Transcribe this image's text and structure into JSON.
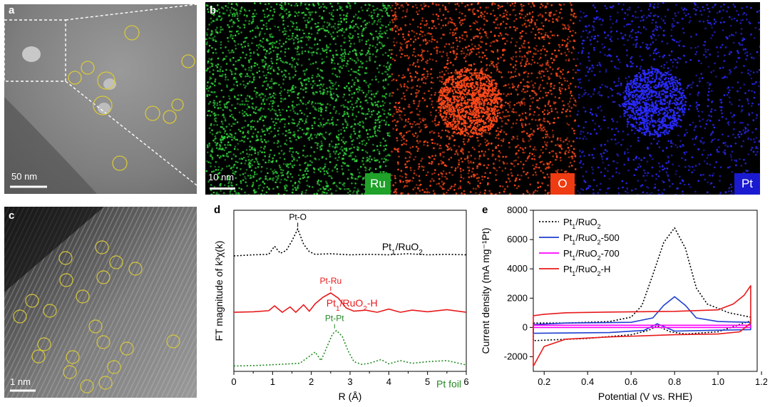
{
  "panels": {
    "a": {
      "label": "a",
      "scalebar": "50 nm"
    },
    "b": {
      "label": "b",
      "scalebar": "10 nm",
      "maps": [
        {
          "element": "Ru",
          "color": "#1fa12a",
          "dot": "#2fd13a"
        },
        {
          "element": "O",
          "color": "#ee3b12",
          "dot": "#ff4a1a"
        },
        {
          "element": "Pt",
          "color": "#1a1ad0",
          "dot": "#2a2aff"
        }
      ]
    },
    "c": {
      "label": "c",
      "scalebar": "1 nm"
    },
    "d": {
      "label": "d"
    },
    "e": {
      "label": "e"
    }
  },
  "chart_data": [
    {
      "panel": "d",
      "type": "line",
      "xlabel": "R (Å)",
      "ylabel": "FT magnitude of k³χ(k)",
      "xlim": [
        0,
        6
      ],
      "xticks": [
        0,
        1,
        2,
        3,
        4,
        5,
        6
      ],
      "series": [
        {
          "name": "Pt1/RuO2",
          "color": "#000000",
          "dash": "dotted",
          "offset": 2.05,
          "peak_label": "Pt-O",
          "peak_x": 1.65,
          "x": [
            0,
            0.5,
            0.9,
            1.05,
            1.2,
            1.35,
            1.5,
            1.65,
            1.8,
            1.95,
            2.1,
            2.5,
            3,
            3.5,
            4,
            4.5,
            5,
            5.5,
            6
          ],
          "y": [
            0.0,
            0.02,
            0.03,
            0.18,
            0.05,
            0.1,
            0.28,
            0.5,
            0.22,
            0.08,
            0.03,
            0.04,
            0.02,
            0.03,
            0.02,
            0.04,
            0.02,
            0.03,
            0.02
          ]
        },
        {
          "name": "Pt1/RuO2-H",
          "color": "#e8191b",
          "dash": "solid",
          "offset": 1.0,
          "peak_label": "Pt-Ru",
          "peak_x": 2.5,
          "x": [
            0,
            0.5,
            0.9,
            1.05,
            1.25,
            1.45,
            1.6,
            1.8,
            1.95,
            2.1,
            2.3,
            2.5,
            2.7,
            2.9,
            3.1,
            3.4,
            3.7,
            4,
            4.3,
            4.6,
            5,
            5.5,
            6
          ],
          "y": [
            0.0,
            0.01,
            0.03,
            0.12,
            0.0,
            0.1,
            0.0,
            0.14,
            0.02,
            0.16,
            0.28,
            0.36,
            0.26,
            0.08,
            0.02,
            0.04,
            0.0,
            0.06,
            0.0,
            0.04,
            0.01,
            0.05,
            0.0
          ]
        },
        {
          "name": "Pt foil",
          "color": "#228b22",
          "dash": "dotted",
          "offset": 0.0,
          "peak_label": "Pt-Pt",
          "peak_x": 2.6,
          "x": [
            0,
            0.6,
            1.2,
            1.7,
            1.95,
            2.1,
            2.25,
            2.4,
            2.55,
            2.65,
            2.8,
            2.95,
            3.1,
            3.3,
            3.5,
            3.8,
            4.0,
            4.3,
            4.6,
            5.0,
            5.5,
            6
          ],
          "y": [
            0.0,
            0.01,
            0.03,
            0.05,
            0.18,
            0.26,
            0.1,
            0.35,
            0.6,
            0.66,
            0.55,
            0.28,
            0.08,
            0.03,
            0.05,
            0.12,
            0.04,
            0.1,
            0.05,
            0.08,
            0.1,
            0.02
          ]
        }
      ]
    },
    {
      "panel": "e",
      "type": "line",
      "xlabel": "Potential (V vs. RHE)",
      "ylabel": "Current density (mA mg⁻¹Pt)",
      "xlim": [
        0.15,
        1.18
      ],
      "ylim": [
        -3000,
        8000
      ],
      "xticks": [
        0.2,
        0.4,
        0.6,
        0.8,
        1.0,
        1.2
      ],
      "xtick_labels": [
        "0.2",
        "0.4",
        "0.6",
        "0.8",
        "1.0",
        "1.2"
      ],
      "yticks": [
        -2000,
        0,
        2000,
        4000,
        6000,
        8000
      ],
      "legend_position": "top-left",
      "series": [
        {
          "name": "Pt1/RuO2",
          "color": "#000000",
          "dash": "dotted",
          "x": [
            0.15,
            0.3,
            0.5,
            0.6,
            0.65,
            0.7,
            0.75,
            0.8,
            0.85,
            0.9,
            0.95,
            1.05,
            1.15,
            1.15,
            1.0,
            0.85,
            0.78,
            0.72,
            0.68,
            0.6,
            0.4,
            0.15
          ],
          "y": [
            300,
            300,
            400,
            700,
            1500,
            3600,
            5800,
            6800,
            5400,
            2700,
            1600,
            1000,
            700,
            450,
            -300,
            -450,
            -300,
            100,
            -200,
            -500,
            -750,
            -900
          ]
        },
        {
          "name": "Pt1/RuO2-500",
          "color": "#1f3fd0",
          "dash": "solid",
          "x": [
            0.15,
            0.3,
            0.6,
            0.7,
            0.75,
            0.8,
            0.85,
            0.9,
            1.0,
            1.15,
            1.15,
            0.8,
            0.72,
            0.66,
            0.5,
            0.15
          ],
          "y": [
            200,
            300,
            350,
            650,
            1500,
            2100,
            1500,
            650,
            400,
            350,
            -150,
            -250,
            250,
            -200,
            -350,
            -400
          ]
        },
        {
          "name": "Pt1/RuO2-700",
          "color": "#ff00ff",
          "dash": "solid",
          "x": [
            0.15,
            0.6,
            1.15,
            1.15,
            0.6,
            0.15
          ],
          "y": [
            150,
            150,
            150,
            0,
            0,
            0
          ]
        },
        {
          "name": "Pt1/RuO2-H",
          "color": "#e8191b",
          "dash": "solid",
          "x": [
            0.15,
            0.2,
            0.3,
            0.5,
            0.8,
            1.0,
            1.07,
            1.12,
            1.15,
            1.15,
            1.1,
            1.0,
            0.8,
            0.5,
            0.3,
            0.2,
            0.15
          ],
          "y": [
            800,
            900,
            1000,
            1050,
            1100,
            1200,
            1600,
            2200,
            2850,
            300,
            -300,
            -450,
            -500,
            -650,
            -800,
            -1300,
            -2650
          ]
        }
      ]
    }
  ],
  "annotations": {
    "d_series_labels": [
      {
        "main": "Pt",
        "sub": "1",
        "rest": "/RuO",
        "sub2": "2",
        "tail": ""
      },
      {
        "main": "Pt",
        "sub": "1",
        "rest": "/RuO",
        "sub2": "2",
        "tail": "-H"
      },
      {
        "main": "Pt foil",
        "sub": "",
        "rest": "",
        "sub2": "",
        "tail": ""
      }
    ]
  }
}
